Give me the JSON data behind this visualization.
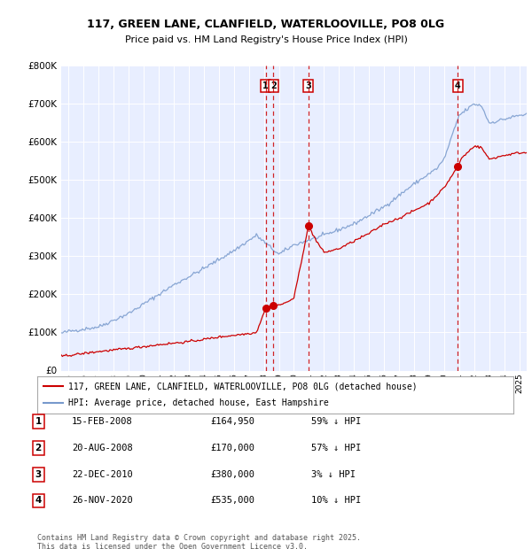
{
  "title": "117, GREEN LANE, CLANFIELD, WATERLOOVILLE, PO8 0LG",
  "subtitle": "Price paid vs. HM Land Registry's House Price Index (HPI)",
  "ylim": [
    0,
    800000
  ],
  "yticks": [
    0,
    100000,
    200000,
    300000,
    400000,
    500000,
    600000,
    700000,
    800000
  ],
  "ytick_labels": [
    "£0",
    "£100K",
    "£200K",
    "£300K",
    "£400K",
    "£500K",
    "£600K",
    "£700K",
    "£800K"
  ],
  "xlim_start": 1994.5,
  "xlim_end": 2025.5,
  "plot_bg_color": "#e8eeff",
  "red_line_color": "#cc0000",
  "blue_line_color": "#7799cc",
  "vline_color": "#cc0000",
  "transactions": [
    {
      "id": 1,
      "date": "15-FEB-2008",
      "year": 2008.12,
      "price": 164950,
      "pct": "59%",
      "dir": "↓"
    },
    {
      "id": 2,
      "date": "20-AUG-2008",
      "year": 2008.63,
      "price": 170000,
      "pct": "57%",
      "dir": "↓"
    },
    {
      "id": 3,
      "date": "22-DEC-2010",
      "year": 2010.97,
      "price": 380000,
      "pct": "3%",
      "dir": "↓"
    },
    {
      "id": 4,
      "date": "26-NOV-2020",
      "year": 2020.9,
      "price": 535000,
      "pct": "10%",
      "dir": "↓"
    }
  ],
  "legend_line1": "117, GREEN LANE, CLANFIELD, WATERLOOVILLE, PO8 0LG (detached house)",
  "legend_line2": "HPI: Average price, detached house, East Hampshire",
  "footer": "Contains HM Land Registry data © Crown copyright and database right 2025.\nThis data is licensed under the Open Government Licence v3.0.",
  "table_rows": [
    {
      "id": 1,
      "date": "15-FEB-2008",
      "price": "£164,950",
      "pct_hpi": "59% ↓ HPI"
    },
    {
      "id": 2,
      "date": "20-AUG-2008",
      "price": "£170,000",
      "pct_hpi": "57% ↓ HPI"
    },
    {
      "id": 3,
      "date": "22-DEC-2010",
      "price": "£380,000",
      "pct_hpi": "3% ↓ HPI"
    },
    {
      "id": 4,
      "date": "26-NOV-2020",
      "price": "£535,000",
      "pct_hpi": "10% ↓ HPI"
    }
  ],
  "hpi_anchors_y": [
    1994.5,
    1995,
    1997,
    1999,
    2000,
    2002,
    2004,
    2006,
    2007.5,
    2009,
    2010,
    2012,
    2014,
    2016,
    2018,
    2019.5,
    2020,
    2021,
    2022,
    2022.5,
    2023,
    2024,
    2025,
    2025.5
  ],
  "hpi_anchors_v": [
    98000,
    103000,
    115000,
    150000,
    175000,
    225000,
    268000,
    315000,
    355000,
    305000,
    330000,
    355000,
    385000,
    430000,
    490000,
    530000,
    555000,
    670000,
    700000,
    695000,
    650000,
    660000,
    670000,
    672000
  ],
  "pp_anchors_y": [
    1994.5,
    1995,
    1997,
    1999,
    2001,
    2003,
    2005,
    2006.5,
    2007.5,
    2008.12,
    2008.63,
    2009.3,
    2010.0,
    2010.97,
    2011.5,
    2012,
    2013,
    2014,
    2015,
    2016,
    2017,
    2018,
    2019,
    2020.0,
    2020.9,
    2021.2,
    2021.5,
    2022,
    2022.5,
    2023,
    2024,
    2025,
    2025.5
  ],
  "pp_anchors_v": [
    38000,
    40000,
    50000,
    58000,
    68000,
    76000,
    88000,
    95000,
    100000,
    164950,
    170000,
    175000,
    190000,
    380000,
    340000,
    310000,
    320000,
    340000,
    360000,
    385000,
    400000,
    420000,
    440000,
    480000,
    535000,
    560000,
    570000,
    590000,
    585000,
    555000,
    565000,
    572000,
    572000
  ]
}
